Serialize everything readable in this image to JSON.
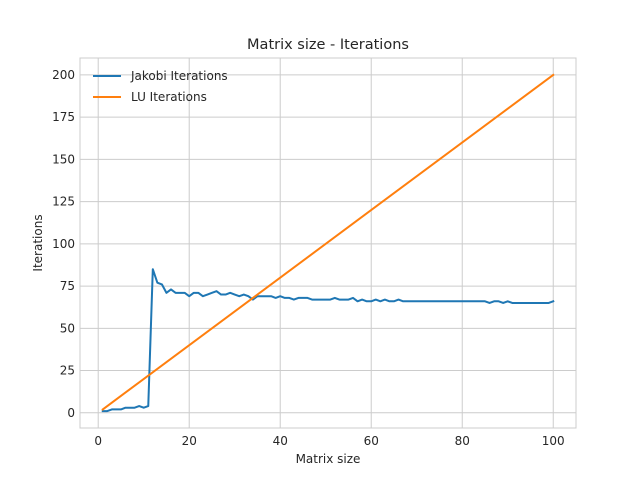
{
  "chart_data": {
    "type": "line",
    "title": "Matrix size - Iterations",
    "xlabel": "Matrix size",
    "ylabel": "Iterations",
    "xlim": [
      -4,
      105
    ],
    "ylim": [
      -9,
      210
    ],
    "xticks": [
      0,
      20,
      40,
      60,
      80,
      100
    ],
    "yticks": [
      0,
      25,
      50,
      75,
      100,
      125,
      150,
      175,
      200
    ],
    "grid": true,
    "legend_position": "top-left",
    "series": [
      {
        "name": "Jakobi Iterations",
        "color": "#1f77b4",
        "x": [
          1,
          2,
          3,
          4,
          5,
          6,
          7,
          8,
          9,
          10,
          11,
          12,
          13,
          14,
          15,
          16,
          17,
          18,
          19,
          20,
          21,
          22,
          23,
          24,
          25,
          26,
          27,
          28,
          29,
          30,
          31,
          32,
          33,
          34,
          35,
          36,
          37,
          38,
          39,
          40,
          41,
          42,
          43,
          44,
          45,
          46,
          47,
          48,
          49,
          50,
          51,
          52,
          53,
          54,
          55,
          56,
          57,
          58,
          59,
          60,
          61,
          62,
          63,
          64,
          65,
          66,
          67,
          68,
          69,
          70,
          71,
          72,
          73,
          74,
          75,
          76,
          77,
          78,
          79,
          80,
          81,
          82,
          83,
          84,
          85,
          86,
          87,
          88,
          89,
          90,
          91,
          92,
          93,
          94,
          95,
          96,
          97,
          98,
          99,
          100
        ],
        "y": [
          1,
          1,
          2,
          2,
          2,
          3,
          3,
          3,
          4,
          3,
          4,
          85,
          77,
          76,
          71,
          73,
          71,
          71,
          71,
          69,
          71,
          71,
          69,
          70,
          71,
          72,
          70,
          70,
          71,
          70,
          69,
          70,
          69,
          67,
          69,
          69,
          69,
          69,
          68,
          69,
          68,
          68,
          67,
          68,
          68,
          68,
          67,
          67,
          67,
          67,
          67,
          68,
          67,
          67,
          67,
          68,
          66,
          67,
          66,
          66,
          67,
          66,
          67,
          66,
          66,
          67,
          66,
          66,
          66,
          66,
          66,
          66,
          66,
          66,
          66,
          66,
          66,
          66,
          66,
          66,
          66,
          66,
          66,
          66,
          66,
          65,
          66,
          66,
          65,
          66,
          65,
          65,
          65,
          65,
          65,
          65,
          65,
          65,
          65,
          66
        ]
      },
      {
        "name": "LU Iterations",
        "color": "#ff7f0e",
        "x": [
          1,
          100
        ],
        "y": [
          2,
          200
        ]
      }
    ]
  }
}
